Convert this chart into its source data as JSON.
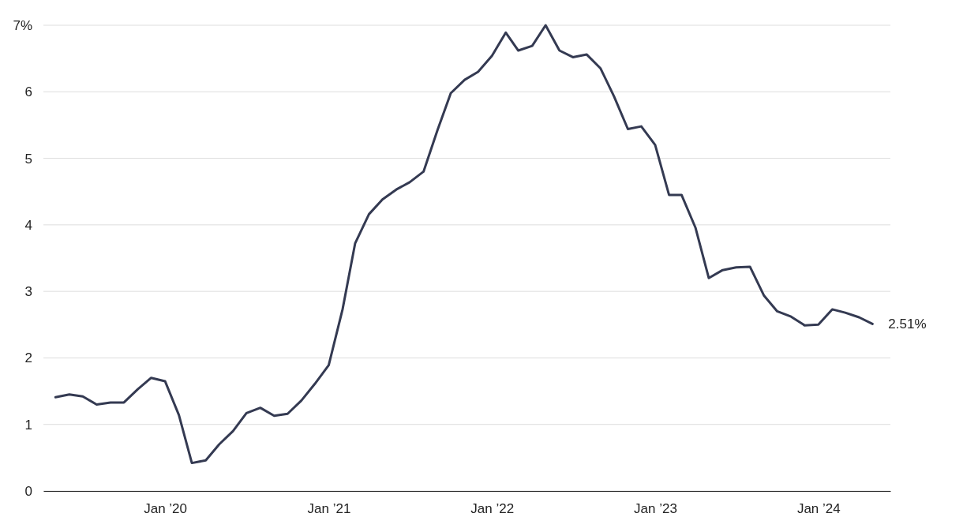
{
  "chart_data": {
    "type": "line",
    "x": [
      "2019-05",
      "2019-06",
      "2019-07",
      "2019-08",
      "2019-09",
      "2019-10",
      "2019-11",
      "2019-12",
      "2020-01",
      "2020-02",
      "2020-03",
      "2020-04",
      "2020-05",
      "2020-06",
      "2020-07",
      "2020-08",
      "2020-09",
      "2020-10",
      "2020-11",
      "2020-12",
      "2021-01",
      "2021-02",
      "2021-03",
      "2021-04",
      "2021-05",
      "2021-06",
      "2021-07",
      "2021-08",
      "2021-09",
      "2021-10",
      "2021-11",
      "2021-12",
      "2022-01",
      "2022-02",
      "2022-03",
      "2022-04",
      "2022-05",
      "2022-06",
      "2022-07",
      "2022-08",
      "2022-09",
      "2022-10",
      "2022-11",
      "2022-12",
      "2023-01",
      "2023-02",
      "2023-03",
      "2023-04",
      "2023-05",
      "2023-06",
      "2023-07",
      "2023-08",
      "2023-09",
      "2023-10",
      "2023-11",
      "2023-12",
      "2024-01",
      "2024-02",
      "2024-03",
      "2024-04",
      "2024-05"
    ],
    "series": [
      {
        "color": "#343a52",
        "values": [
          1.41,
          1.45,
          1.42,
          1.3,
          1.33,
          1.33,
          1.53,
          1.7,
          1.65,
          1.14,
          0.42,
          0.46,
          0.7,
          0.9,
          1.17,
          1.25,
          1.13,
          1.16,
          1.36,
          1.61,
          1.89,
          2.73,
          3.72,
          4.16,
          4.38,
          4.53,
          4.64,
          4.8,
          5.42,
          5.98,
          6.18,
          6.3,
          6.54,
          6.89,
          6.62,
          6.69,
          7.0,
          6.62,
          6.52,
          6.56,
          6.35,
          5.93,
          5.44,
          5.48,
          5.2,
          4.45,
          4.45,
          3.96,
          3.2,
          3.32,
          3.36,
          3.37,
          2.94,
          2.7,
          2.62,
          2.49,
          2.5,
          2.73,
          2.68,
          2.61,
          2.51
        ]
      }
    ],
    "xlim": [
      "2019-04-04",
      "2024-06-10"
    ],
    "xticks": [
      {
        "value": "2020-01",
        "label": "Jan ’20"
      },
      {
        "value": "2021-01",
        "label": "Jan ’21"
      },
      {
        "value": "2022-01",
        "label": "Jan ’22"
      },
      {
        "value": "2023-01",
        "label": "Jan ’23"
      },
      {
        "value": "2024-01",
        "label": "Jan ’24"
      }
    ],
    "ylim": [
      0,
      7
    ],
    "yticks": [
      0,
      1,
      2,
      3,
      4,
      5,
      6,
      {
        "value": 7,
        "label": "7%"
      }
    ],
    "grid": "y",
    "line_style": "solid",
    "annotations": [
      {
        "text": "2.51%",
        "x": "2024-05",
        "y": 2.51
      }
    ]
  }
}
